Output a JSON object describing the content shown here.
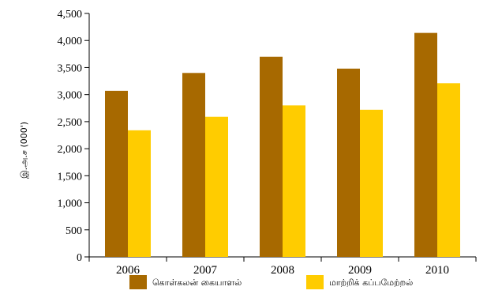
{
  "chart_data": {
    "type": "bar",
    "categories": [
      "2006",
      "2007",
      "2008",
      "2009",
      "2010"
    ],
    "series": [
      {
        "name": "கொள்கலன் கையாளல்",
        "color": "#a76900",
        "values": [
          3070,
          3400,
          3700,
          3480,
          4140
        ]
      },
      {
        "name": "மாற்றிக் கப்பமேற்றல்",
        "color": "#ffcc00",
        "values": [
          2340,
          2590,
          2800,
          2720,
          3210
        ]
      }
    ],
    "ylabel": "இ.அ.ச (000')",
    "xlabel": "",
    "ylim": [
      0,
      4500
    ],
    "yticks": [
      0,
      500,
      1000,
      1500,
      2000,
      2500,
      3000,
      3500,
      4000,
      4500
    ],
    "ytick_labels": [
      "0",
      "500",
      "1,000",
      "1,500",
      "2,000",
      "2,500",
      "3,000",
      "3,500",
      "4,000",
      "4,500"
    ],
    "grid": false,
    "legend": "bottom"
  }
}
